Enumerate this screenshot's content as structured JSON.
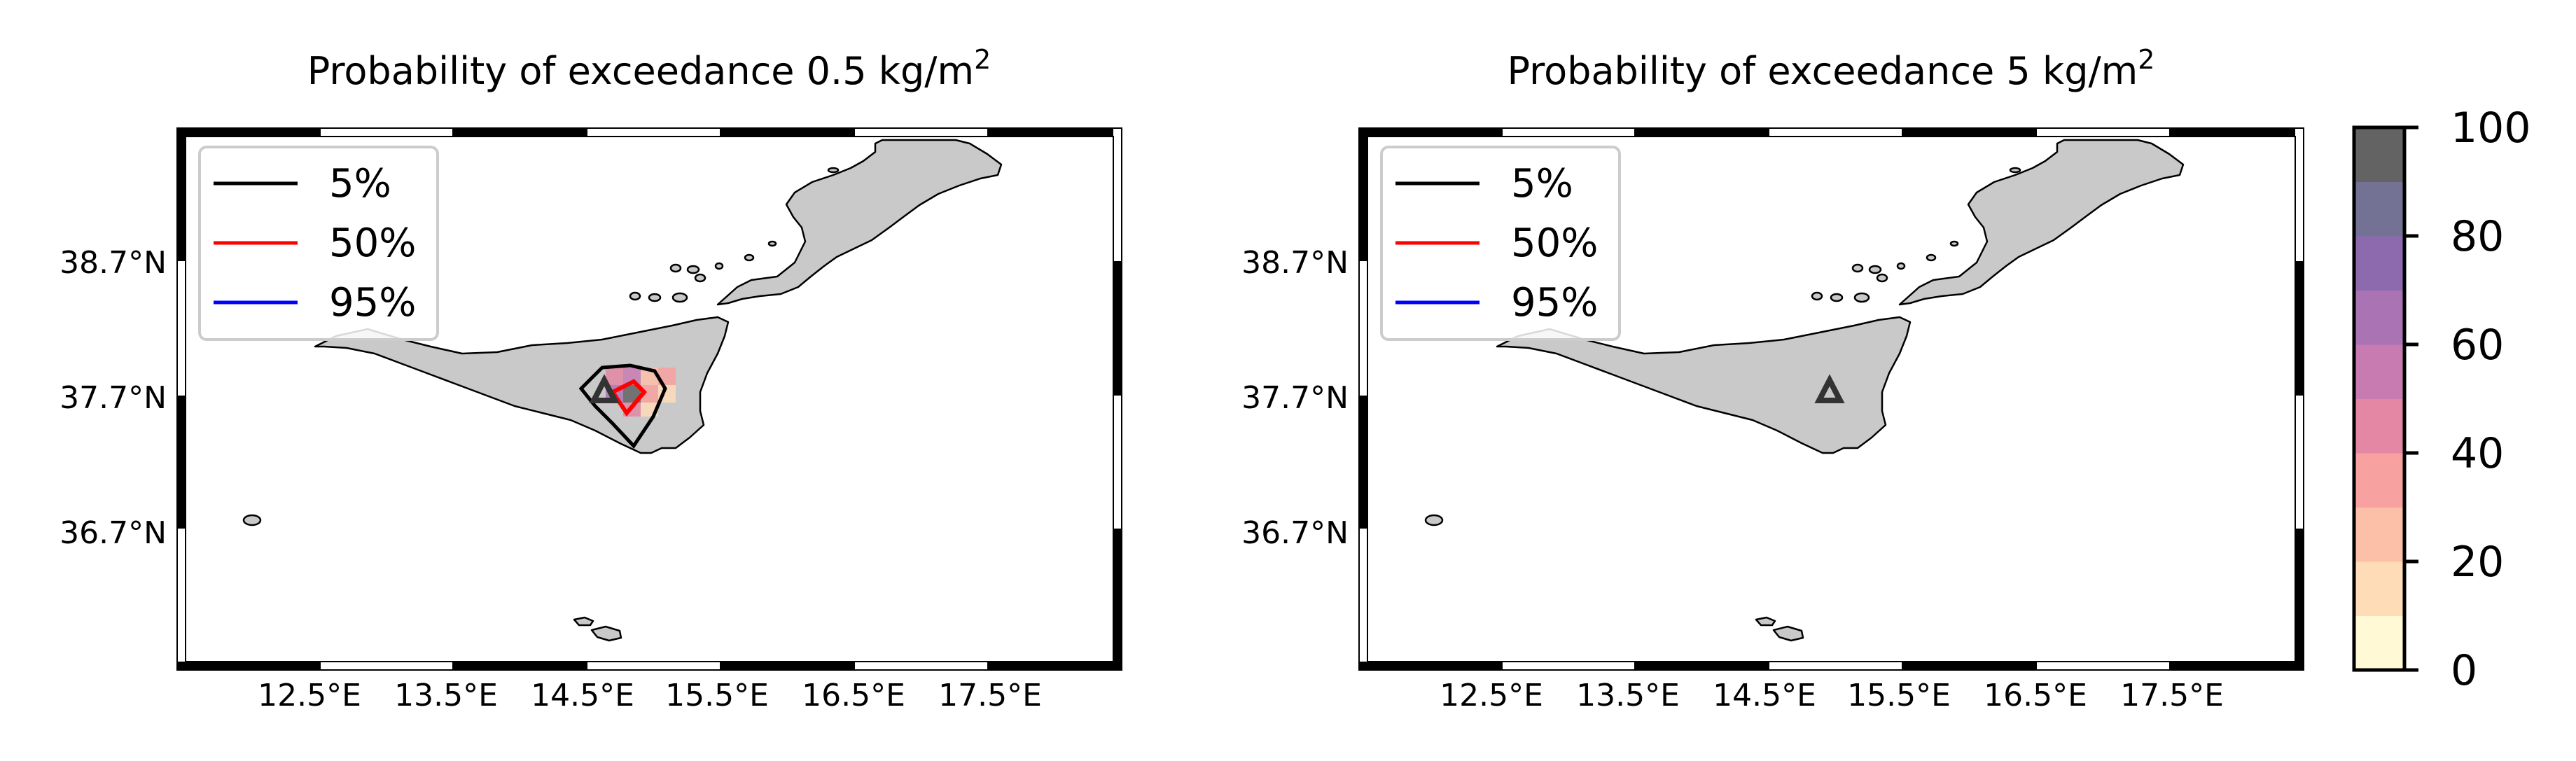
{
  "panels": [
    {
      "title": "Probability of exceedance 0.5 kg/m",
      "title_sup": "2",
      "show_contours": true,
      "show_probability_field": true
    },
    {
      "title": "Probability of exceedance 5 kg/m",
      "title_sup": "2",
      "show_contours": false,
      "show_probability_field": false
    }
  ],
  "lat_ticks": [
    "38.7°N",
    "37.7°N",
    "36.7°N"
  ],
  "lon_ticks": [
    "12.5°E",
    "13.5°E",
    "14.5°E",
    "15.5°E",
    "16.5°E",
    "17.5°E"
  ],
  "legend": [
    {
      "label": "5%",
      "color": "#000000"
    },
    {
      "label": "50%",
      "color": "#ff0000"
    },
    {
      "label": "95%",
      "color": "#0000ff"
    }
  ],
  "colorbar": {
    "ticks": [
      "0",
      "20",
      "40",
      "60",
      "80",
      "100"
    ],
    "colors": [
      "#fff9d6",
      "#fddcb7",
      "#fcc0a8",
      "#f7a1a0",
      "#e487a5",
      "#c87bb0",
      "#aa74b4",
      "#8d6aae",
      "#737294",
      "#636363"
    ]
  },
  "vent_marker": {
    "name": "volcano-vent",
    "shape": "triangle",
    "color": "#333333"
  }
}
